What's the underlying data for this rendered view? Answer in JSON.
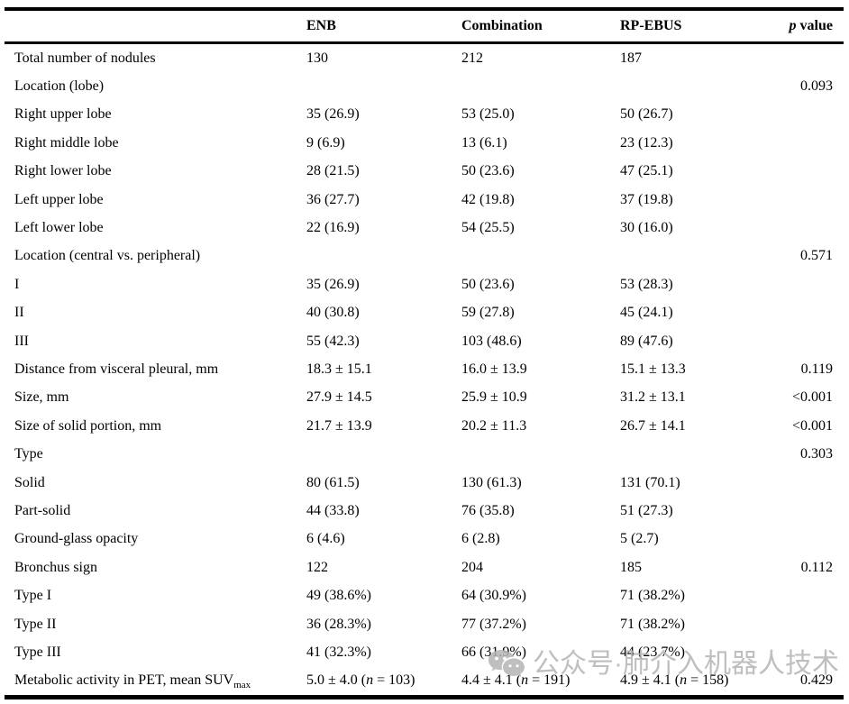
{
  "table": {
    "header": {
      "label": "",
      "col1": "ENB",
      "col2": "Combination",
      "col3": "RP-EBUS",
      "p_italic": "p",
      "p_rest": " value"
    },
    "rows": [
      {
        "label": "Total number of nodules",
        "enb": "130",
        "combination": "212",
        "rp_ebus": "187",
        "p": ""
      },
      {
        "label": "Location (lobe)",
        "enb": "",
        "combination": "",
        "rp_ebus": "",
        "p": "0.093"
      },
      {
        "label": "Right upper lobe",
        "enb": "35 (26.9)",
        "combination": "53 (25.0)",
        "rp_ebus": "50 (26.7)",
        "p": ""
      },
      {
        "label": "Right middle lobe",
        "enb": "9 (6.9)",
        "combination": "13 (6.1)",
        "rp_ebus": "23 (12.3)",
        "p": ""
      },
      {
        "label": "Right lower lobe",
        "enb": "28 (21.5)",
        "combination": "50 (23.6)",
        "rp_ebus": "47 (25.1)",
        "p": ""
      },
      {
        "label": "Left upper lobe",
        "enb": "36 (27.7)",
        "combination": "42 (19.8)",
        "rp_ebus": "37 (19.8)",
        "p": ""
      },
      {
        "label": "Left lower lobe",
        "enb": "22 (16.9)",
        "combination": "54 (25.5)",
        "rp_ebus": "30 (16.0)",
        "p": ""
      },
      {
        "label": "Location (central vs. peripheral)",
        "enb": "",
        "combination": "",
        "rp_ebus": "",
        "p": "0.571"
      },
      {
        "label": "I",
        "enb": "35 (26.9)",
        "combination": "50 (23.6)",
        "rp_ebus": "53 (28.3)",
        "p": ""
      },
      {
        "label": "II",
        "enb": "40 (30.8)",
        "combination": "59 (27.8)",
        "rp_ebus": "45 (24.1)",
        "p": ""
      },
      {
        "label": "III",
        "enb": "55 (42.3)",
        "combination": "103 (48.6)",
        "rp_ebus": "89 (47.6)",
        "p": ""
      },
      {
        "label": "Distance from visceral pleural, mm",
        "enb": "18.3 ± 15.1",
        "combination": "16.0 ± 13.9",
        "rp_ebus": "15.1 ± 13.3",
        "p": "0.119"
      },
      {
        "label": "Size, mm",
        "enb": "27.9 ± 14.5",
        "combination": "25.9 ± 10.9",
        "rp_ebus": "31.2 ± 13.1",
        "p": "<0.001"
      },
      {
        "label": "Size of solid portion, mm",
        "enb": "21.7 ± 13.9",
        "combination": "20.2 ± 11.3",
        "rp_ebus": "26.7 ± 14.1",
        "p": "<0.001"
      },
      {
        "label": "Type",
        "enb": "",
        "combination": "",
        "rp_ebus": "",
        "p": "0.303"
      },
      {
        "label": "Solid",
        "enb": "80 (61.5)",
        "combination": "130 (61.3)",
        "rp_ebus": "131 (70.1)",
        "p": ""
      },
      {
        "label": "Part-solid",
        "enb": "44 (33.8)",
        "combination": "76 (35.8)",
        "rp_ebus": "51 (27.3)",
        "p": ""
      },
      {
        "label": "Ground-glass opacity",
        "enb": "6 (4.6)",
        "combination": "6 (2.8)",
        "rp_ebus": "5 (2.7)",
        "p": ""
      },
      {
        "label": "Bronchus sign",
        "enb": "122",
        "combination": "204",
        "rp_ebus": "185",
        "p": "0.112"
      },
      {
        "label": "Type I",
        "enb": "49 (38.6%)",
        "combination": "64 (30.9%)",
        "rp_ebus": "71 (38.2%)",
        "p": ""
      },
      {
        "label": "Type II",
        "enb": "36 (28.3%)",
        "combination": "77 (37.2%)",
        "rp_ebus": "71 (38.2%)",
        "p": ""
      },
      {
        "label": "Type III",
        "enb": "41 (32.3%)",
        "combination": "66 (31.9%)",
        "rp_ebus": "44 (23.7%)",
        "p": ""
      },
      {
        "label": "Metabolic activity in PET, mean SUV",
        "label_sub": "max",
        "enb": "5.0 ± 4.0 (n = 103)",
        "combination": "4.4 ± 4.1 (n = 191)",
        "rp_ebus": "4.9 ± 4.1 (n = 158)",
        "p": "0.429"
      }
    ]
  },
  "watermark": {
    "icon": "wechat-icon",
    "icon_color": "#b4b4b4",
    "text": "公众号·肺介入机器人技术"
  }
}
